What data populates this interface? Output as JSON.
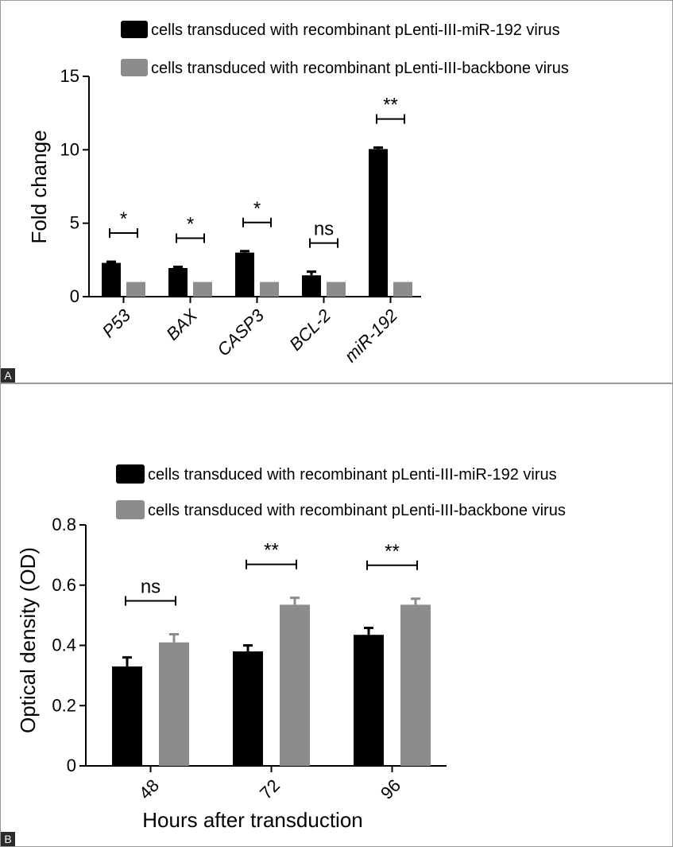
{
  "chart_data": [
    {
      "panel": "A",
      "type": "bar",
      "title": "",
      "xlabel": "",
      "ylabel": "Fold change",
      "ylim": [
        0,
        15
      ],
      "yticks": [
        "0",
        "5",
        "10",
        "15"
      ],
      "categories": [
        "P53",
        "BAX",
        "CASP3",
        "BCL-2",
        "miR-192"
      ],
      "series": [
        {
          "name": "cells transduced with recombinant pLenti-III-miR-192 virus",
          "values": [
            2.3,
            1.95,
            3.0,
            1.45,
            10.05
          ],
          "errors": [
            0.08,
            0.08,
            0.1,
            0.25,
            0.1
          ]
        },
        {
          "name": "cells transduced with recombinant pLenti-III-backbone virus",
          "values": [
            1.0,
            1.0,
            1.0,
            1.0,
            1.0
          ],
          "errors": [
            0,
            0,
            0,
            0,
            0
          ]
        }
      ],
      "significance": [
        "*",
        "*",
        "*",
        "ns",
        "**"
      ],
      "legend_position": "top",
      "grid": false
    },
    {
      "panel": "B",
      "type": "bar",
      "title": "",
      "xlabel": "Hours after transduction",
      "ylabel": "Optical density (OD)",
      "ylim": [
        0,
        0.8
      ],
      "yticks": [
        "0",
        "0.2",
        "0.4",
        "0.6",
        "0.8"
      ],
      "categories": [
        "48",
        "72",
        "96"
      ],
      "series": [
        {
          "name": "cells transduced with recombinant pLenti-III-miR-192 virus",
          "values": [
            0.33,
            0.38,
            0.435
          ],
          "errors": [
            0.03,
            0.02,
            0.023
          ]
        },
        {
          "name": "cells transduced with recombinant pLenti-III-backbone virus",
          "values": [
            0.41,
            0.535,
            0.535
          ],
          "errors": [
            0.027,
            0.023,
            0.02
          ]
        }
      ],
      "significance": [
        "ns",
        "**",
        "**"
      ],
      "legend_position": "top",
      "grid": false
    }
  ],
  "panels": {
    "a_label": "A",
    "b_label": "B"
  },
  "colors": {
    "series1": "#000000",
    "series2": "#8c8c8c"
  }
}
